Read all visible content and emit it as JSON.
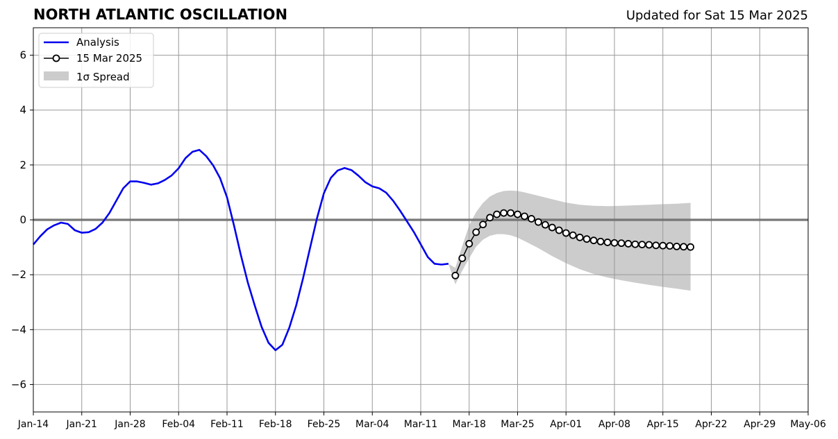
{
  "chart_data": {
    "type": "line",
    "title": "NORTH ATLANTIC OSCILLATION",
    "subtitle": "Updated for Sat 15 Mar 2025",
    "xlabel": "",
    "ylabel": "",
    "x_start": "2025-01-14",
    "xlim": [
      "2025-01-14",
      "2025-05-06"
    ],
    "ylim": [
      -7,
      7
    ],
    "x_tick_labels": [
      "Jan-14",
      "Jan-21",
      "Jan-28",
      "Feb-04",
      "Feb-11",
      "Feb-18",
      "Feb-25",
      "Mar-04",
      "Mar-11",
      "Mar-18",
      "Mar-25",
      "Apr-01",
      "Apr-08",
      "Apr-15",
      "Apr-22",
      "Apr-29",
      "May-06"
    ],
    "y_ticks": [
      -6,
      -4,
      -2,
      0,
      2,
      4,
      6
    ],
    "y_tick_labels": [
      "−6",
      "−4",
      "−2",
      "0",
      "2",
      "4",
      "6"
    ],
    "grid": true,
    "zero_line": true,
    "legend_position": "top-left",
    "legend": {
      "analysis": "Analysis",
      "forecast": "15 Mar 2025",
      "spread": "1σ Spread"
    },
    "series": [
      {
        "name": "Analysis",
        "color": "#0000ee",
        "x": [
          "2025-01-14",
          "2025-01-15",
          "2025-01-16",
          "2025-01-17",
          "2025-01-18",
          "2025-01-19",
          "2025-01-20",
          "2025-01-21",
          "2025-01-22",
          "2025-01-23",
          "2025-01-24",
          "2025-01-25",
          "2025-01-26",
          "2025-01-27",
          "2025-01-28",
          "2025-01-29",
          "2025-01-30",
          "2025-01-31",
          "2025-02-01",
          "2025-02-02",
          "2025-02-03",
          "2025-02-04",
          "2025-02-05",
          "2025-02-06",
          "2025-02-07",
          "2025-02-08",
          "2025-02-09",
          "2025-02-10",
          "2025-02-11",
          "2025-02-12",
          "2025-02-13",
          "2025-02-14",
          "2025-02-15",
          "2025-02-16",
          "2025-02-17",
          "2025-02-18",
          "2025-02-19",
          "2025-02-20",
          "2025-02-21",
          "2025-02-22",
          "2025-02-23",
          "2025-02-24",
          "2025-02-25",
          "2025-02-26",
          "2025-02-27",
          "2025-02-28",
          "2025-03-01",
          "2025-03-02",
          "2025-03-03",
          "2025-03-04",
          "2025-03-05",
          "2025-03-06",
          "2025-03-07",
          "2025-03-08",
          "2025-03-09",
          "2025-03-10",
          "2025-03-11",
          "2025-03-12",
          "2025-03-13",
          "2025-03-14",
          "2025-03-15"
        ],
        "values": [
          -0.9,
          -0.6,
          -0.35,
          -0.2,
          -0.1,
          -0.15,
          -0.38,
          -0.47,
          -0.45,
          -0.33,
          -0.1,
          0.25,
          0.7,
          1.15,
          1.4,
          1.4,
          1.35,
          1.28,
          1.33,
          1.45,
          1.62,
          1.88,
          2.25,
          2.48,
          2.55,
          2.32,
          1.98,
          1.52,
          0.82,
          -0.2,
          -1.28,
          -2.28,
          -3.12,
          -3.9,
          -4.48,
          -4.75,
          -4.55,
          -3.93,
          -3.12,
          -2.12,
          -1.02,
          0.05,
          0.97,
          1.53,
          1.8,
          1.89,
          1.81,
          1.61,
          1.37,
          1.22,
          1.15,
          0.99,
          0.7,
          0.34,
          -0.05,
          -0.44,
          -0.89,
          -1.35,
          -1.6,
          -1.63,
          -1.6
        ]
      },
      {
        "name": "15 Mar 2025",
        "color": "#000000",
        "x": [
          "2025-03-16",
          "2025-03-17",
          "2025-03-18",
          "2025-03-19",
          "2025-03-20",
          "2025-03-21",
          "2025-03-22",
          "2025-03-23",
          "2025-03-24",
          "2025-03-25",
          "2025-03-26",
          "2025-03-27",
          "2025-03-28",
          "2025-03-29",
          "2025-03-30",
          "2025-03-31",
          "2025-04-01",
          "2025-04-02",
          "2025-04-03",
          "2025-04-04",
          "2025-04-05",
          "2025-04-06",
          "2025-04-07",
          "2025-04-08",
          "2025-04-09",
          "2025-04-10",
          "2025-04-11",
          "2025-04-12",
          "2025-04-13",
          "2025-04-14",
          "2025-04-15",
          "2025-04-16",
          "2025-04-17",
          "2025-04-18",
          "2025-04-19"
        ],
        "values": [
          -2.03,
          -1.4,
          -0.87,
          -0.45,
          -0.17,
          0.08,
          0.2,
          0.25,
          0.25,
          0.2,
          0.13,
          0.04,
          -0.08,
          -0.18,
          -0.28,
          -0.38,
          -0.48,
          -0.56,
          -0.64,
          -0.7,
          -0.75,
          -0.79,
          -0.82,
          -0.84,
          -0.85,
          -0.87,
          -0.89,
          -0.9,
          -0.91,
          -0.93,
          -0.94,
          -0.95,
          -0.97,
          -0.98,
          -0.99
        ]
      }
    ],
    "spread": {
      "name": "1σ Spread",
      "color": "#cccccc",
      "x": [
        "2025-03-15",
        "2025-03-16",
        "2025-03-17",
        "2025-03-18",
        "2025-03-19",
        "2025-03-20",
        "2025-03-21",
        "2025-03-22",
        "2025-03-23",
        "2025-03-24",
        "2025-03-25",
        "2025-03-26",
        "2025-03-28",
        "2025-03-30",
        "2025-04-01",
        "2025-04-03",
        "2025-04-05",
        "2025-04-07",
        "2025-04-09",
        "2025-04-11",
        "2025-04-13",
        "2025-04-15",
        "2025-04-17",
        "2025-04-19"
      ],
      "upper": [
        -1.6,
        -1.75,
        -0.95,
        -0.2,
        0.28,
        0.62,
        0.85,
        0.98,
        1.05,
        1.07,
        1.05,
        1.0,
        0.88,
        0.75,
        0.63,
        0.55,
        0.51,
        0.5,
        0.51,
        0.53,
        0.55,
        0.57,
        0.59,
        0.62
      ],
      "lower": [
        -1.6,
        -2.35,
        -1.85,
        -1.4,
        -0.98,
        -0.72,
        -0.58,
        -0.52,
        -0.52,
        -0.56,
        -0.65,
        -0.77,
        -1.03,
        -1.32,
        -1.58,
        -1.8,
        -1.97,
        -2.1,
        -2.2,
        -2.29,
        -2.37,
        -2.44,
        -2.51,
        -2.58
      ]
    }
  }
}
